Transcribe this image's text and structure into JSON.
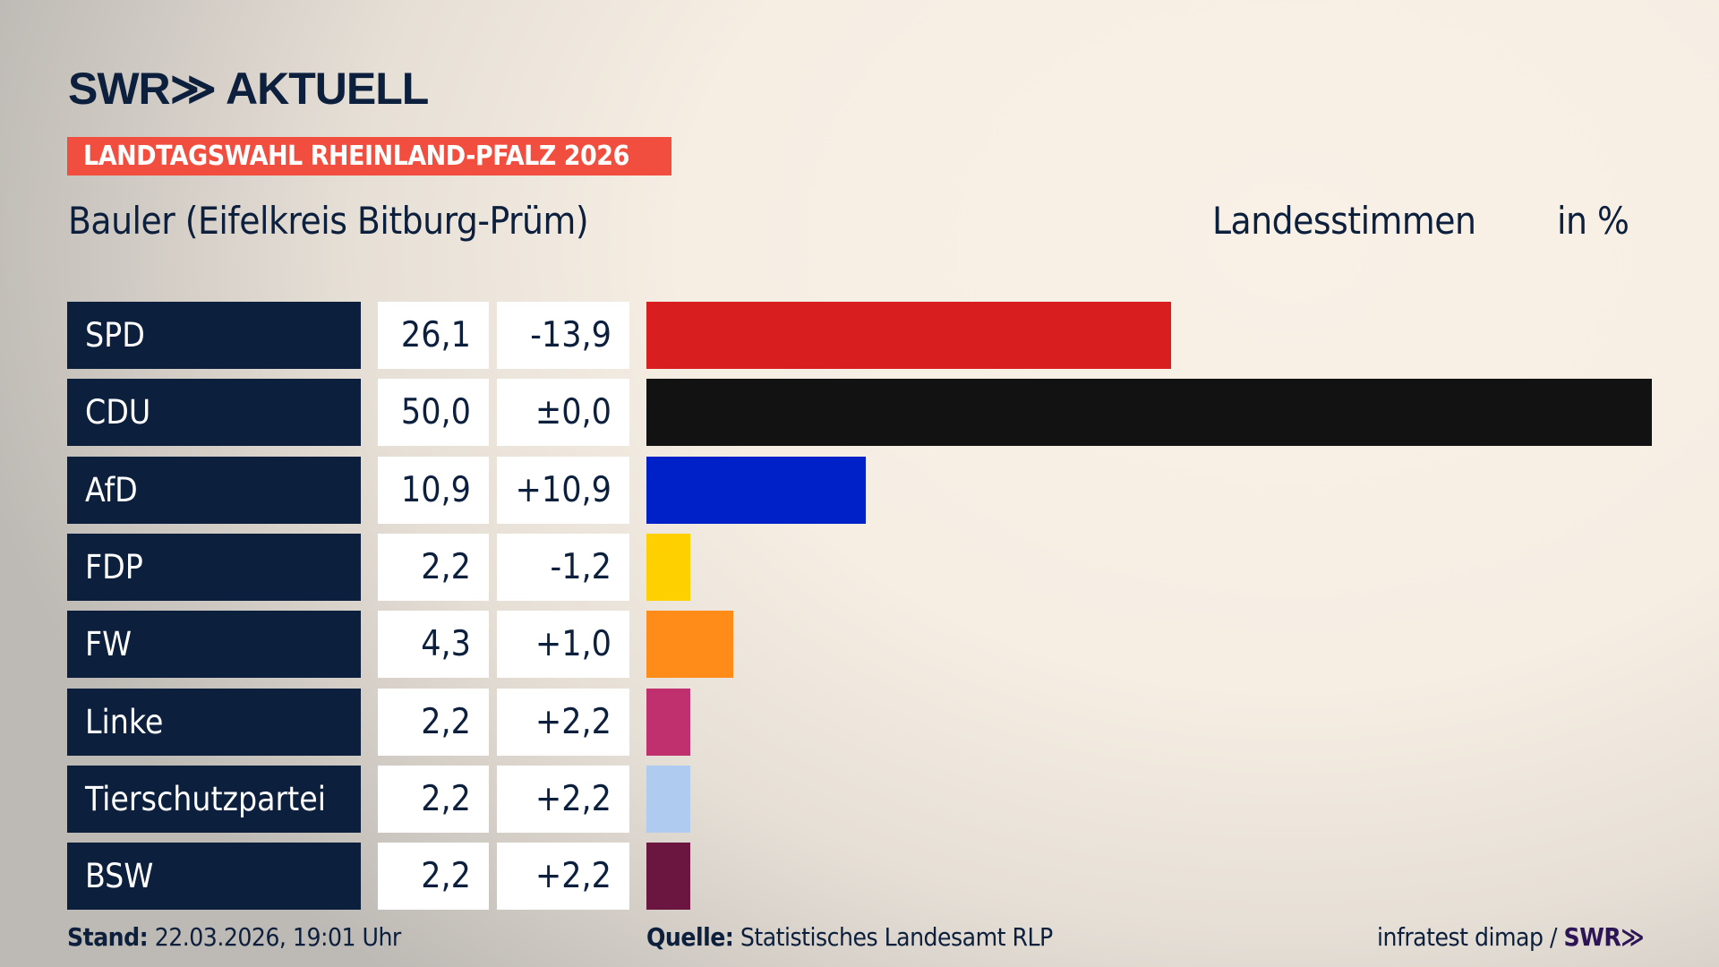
{
  "logo": "SWR≫ AKTUELL",
  "banner": "LANDTAGSWAHL RHEINLAND-PFALZ 2026",
  "subtitle": "Bauler (Eifelkreis Bitburg-Prüm)",
  "header_votes": "Landesstimmen",
  "header_unit": "in %",
  "chart_data": {
    "type": "bar",
    "orientation": "horizontal",
    "categories": [
      "SPD",
      "CDU",
      "AfD",
      "FDP",
      "FW",
      "Linke",
      "Tierschutzpartei",
      "BSW"
    ],
    "values": [
      26.1,
      50.0,
      10.9,
      2.2,
      4.3,
      2.2,
      2.2,
      2.2
    ],
    "value_labels": [
      "26,1",
      "50,0",
      "10,9",
      "2,2",
      "4,3",
      "2,2",
      "2,2",
      "2,2"
    ],
    "diff_labels": [
      "-13,9",
      "±0,0",
      "+10,9",
      "-1,2",
      "+1,0",
      "+2,2",
      "+2,2",
      "+2,2"
    ],
    "colors": [
      "#d81e1e",
      "#121212",
      "#0021c8",
      "#ffd000",
      "#ff8c19",
      "#c0306f",
      "#afcbef",
      "#6a1640"
    ],
    "xlim": [
      0,
      50
    ]
  },
  "footer": {
    "stand_label": "Stand:",
    "stand_value": "22.03.2026, 19:01 Uhr",
    "source_label": "Quelle:",
    "source_value": "Statistisches Landesamt RLP",
    "credit": "infratest dimap / ",
    "credit_logo": "SWR≫"
  }
}
